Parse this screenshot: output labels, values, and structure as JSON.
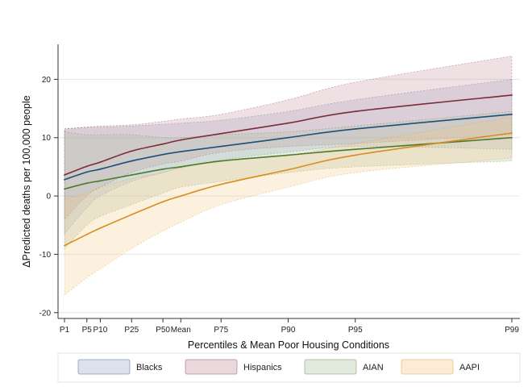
{
  "chart_data": {
    "type": "line",
    "title": "",
    "xlabel": "Percentiles & Mean Poor Housing Conditions",
    "ylabel": "ΔPredicted deaths per 100,000 people",
    "ylim": [
      -21,
      26
    ],
    "yticks": [
      -20,
      -10,
      0,
      10,
      20
    ],
    "grid": "horizontal",
    "legend_position": "bottom",
    "categories": [
      "P1",
      "P5",
      "P10",
      "P25",
      "P50",
      "Mean",
      "P75",
      "P90",
      "P95",
      "P99"
    ],
    "x": [
      0,
      5,
      8,
      15,
      22,
      26,
      35,
      50,
      65,
      100
    ],
    "series": [
      {
        "name": "Blacks",
        "color": "#1f4e79",
        "fill": "#9aa8c8",
        "values": [
          2.8,
          4.1,
          4.6,
          6.0,
          7.1,
          7.6,
          8.5,
          10.0,
          11.5,
          14.0
        ],
        "lower": [
          -6.5,
          -2.0,
          0.0,
          2.5,
          4.0,
          4.8,
          6.2,
          7.5,
          8.5,
          8.0
        ],
        "upper": [
          11.5,
          11.8,
          11.8,
          12.0,
          12.3,
          12.5,
          13.0,
          14.5,
          16.5,
          20.0
        ]
      },
      {
        "name": "Hispanics",
        "color": "#7b2b3a",
        "fill": "#c48e9c",
        "values": [
          3.6,
          5.1,
          5.8,
          7.7,
          8.9,
          9.6,
          10.7,
          12.5,
          14.5,
          17.3
        ],
        "lower": [
          -4.0,
          0.0,
          1.5,
          4.0,
          5.5,
          6.0,
          7.5,
          8.5,
          9.0,
          10.5
        ],
        "upper": [
          11.5,
          11.8,
          12.0,
          12.2,
          12.8,
          13.2,
          14.0,
          16.5,
          19.5,
          24.0
        ]
      },
      {
        "name": "AIAN",
        "color": "#4e7a2f",
        "fill": "#a9c39a",
        "values": [
          1.2,
          2.2,
          2.6,
          3.6,
          4.6,
          5.0,
          6.0,
          7.0,
          8.0,
          10.0
        ],
        "lower": [
          -9.0,
          -5.0,
          -3.5,
          -1.5,
          0.5,
          1.5,
          2.5,
          4.0,
          5.0,
          6.0
        ],
        "upper": [
          11.0,
          10.5,
          10.5,
          10.5,
          10.0,
          10.0,
          10.5,
          11.0,
          12.0,
          14.5
        ]
      },
      {
        "name": "AAPI",
        "color": "#d98c1e",
        "fill": "#f6c98a",
        "values": [
          -8.5,
          -6.6,
          -5.5,
          -3.2,
          -1.0,
          0.0,
          2.0,
          4.5,
          7.0,
          10.8
        ],
        "lower": [
          -17.0,
          -14.0,
          -12.5,
          -9.0,
          -6.0,
          -4.5,
          -1.5,
          1.5,
          4.0,
          6.5
        ],
        "upper": [
          -0.5,
          0.5,
          1.5,
          3.0,
          4.0,
          5.0,
          6.0,
          7.0,
          9.0,
          13.5
        ]
      }
    ]
  }
}
